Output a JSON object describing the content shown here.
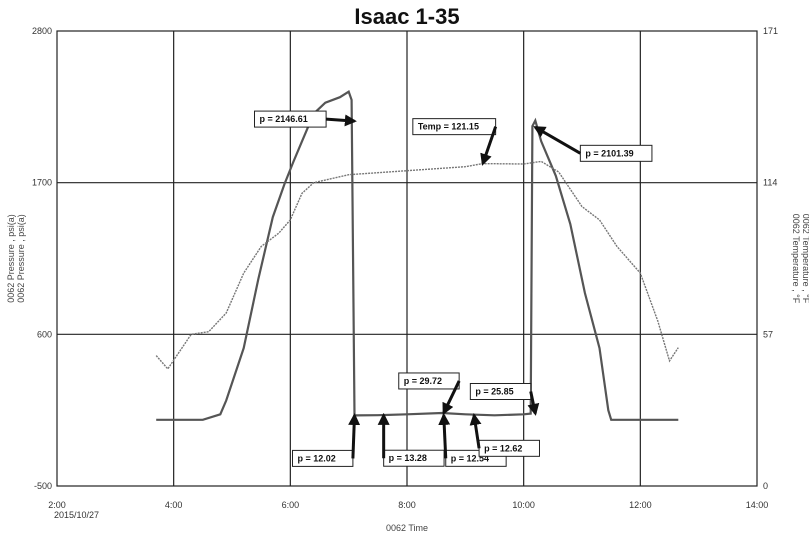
{
  "chart_data": {
    "type": "line",
    "title": "Isaac 1-35",
    "xlabel": "0062 Time",
    "xdate": "2015/10/27",
    "x_ticks": [
      "2:00",
      "4:00",
      "6:00",
      "8:00",
      "10:00",
      "12:00",
      "14:00"
    ],
    "x_tick_hours": [
      2,
      4,
      6,
      8,
      10,
      12,
      14
    ],
    "xlim": [
      2,
      14
    ],
    "ylabel_left": [
      "0062 Pressure , psi(a)",
      "0062 Pressure , psi(a)"
    ],
    "ylabel_right": [
      "0062 Temperature , °F",
      "0062 Temperature , °F"
    ],
    "ylim_left": [
      -500,
      2800
    ],
    "y_ticks_left": [
      "2800",
      "1700",
      "600",
      "-500"
    ],
    "y_tick_values_left": [
      2800,
      1700,
      600,
      -500
    ],
    "ylim_right": [
      0,
      171
    ],
    "y_ticks_right": [
      "171",
      "114",
      "57",
      "0"
    ],
    "y_tick_values_right": [
      171,
      114,
      57,
      0
    ],
    "grid": true,
    "series": [
      {
        "axis": "left",
        "color": "#555555",
        "x": [
          3.7,
          4.5,
          4.8,
          4.9,
          5.2,
          5.45,
          5.7,
          5.9,
          6.05,
          6.2,
          6.4,
          6.6,
          6.85,
          7.0,
          7.05,
          7.1,
          7.12,
          7.5,
          8.0,
          8.6,
          9.0,
          9.5,
          10.0,
          10.12,
          10.15,
          10.2,
          10.3,
          10.55,
          10.8,
          11.05,
          11.3,
          11.45,
          11.5,
          12.0,
          12.65
        ],
        "y": [
          -20,
          -20,
          20,
          120,
          500,
          1000,
          1450,
          1690,
          1850,
          2000,
          2200,
          2280,
          2320,
          2360,
          2300,
          12,
          12,
          13.3,
          20,
          29.7,
          20,
          13,
          20,
          25,
          2110,
          2150,
          2000,
          1750,
          1400,
          900,
          500,
          50,
          -20,
          -20,
          -20
        ]
      },
      {
        "axis": "right",
        "color": "#777777",
        "x": [
          3.7,
          3.9,
          4.3,
          4.6,
          4.9,
          5.2,
          5.5,
          5.8,
          6.0,
          6.2,
          6.4,
          7.0,
          8.0,
          9.0,
          9.3,
          10.0,
          10.3,
          10.6,
          11.0,
          11.3,
          11.6,
          12.0,
          12.3,
          12.5,
          12.65
        ],
        "y": [
          49,
          44,
          57,
          58,
          65,
          80,
          90,
          95,
          100,
          110,
          114,
          117,
          118.5,
          120,
          121.15,
          121,
          122,
          118,
          105,
          100,
          90,
          80,
          62,
          47,
          52
        ]
      }
    ],
    "annotations": [
      {
        "text": "p = 2146.61",
        "x": 7.1,
        "y": 2146.61,
        "axis": "left"
      },
      {
        "text": "Temp = 121.15",
        "x": 9.3,
        "y": 121.15,
        "axis": "right"
      },
      {
        "text": "p = 2101.39",
        "x": 10.2,
        "y": 2101.39,
        "axis": "left"
      },
      {
        "text": "p = 29.72",
        "x": 8.63,
        "y": 29.72,
        "axis": "left"
      },
      {
        "text": "p = 25.85",
        "x": 10.2,
        "y": 25.85,
        "axis": "left"
      },
      {
        "text": "p = 12.02",
        "x": 7.1,
        "y": 12.02,
        "axis": "left"
      },
      {
        "text": "p = 13.28",
        "x": 7.6,
        "y": 13.28,
        "axis": "left"
      },
      {
        "text": "p = 12.54",
        "x": 8.63,
        "y": 12.54,
        "axis": "left"
      },
      {
        "text": "p = 12.62",
        "x": 9.15,
        "y": 12.62,
        "axis": "left"
      }
    ]
  }
}
